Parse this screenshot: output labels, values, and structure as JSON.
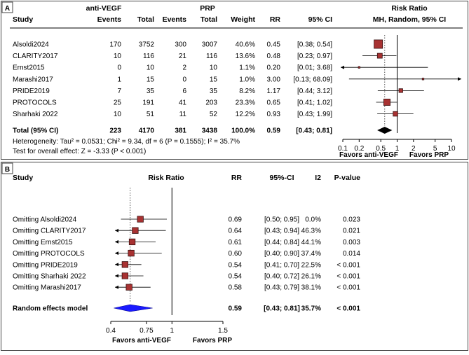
{
  "chart_data": [
    {
      "type": "forest",
      "panel_label": "A",
      "columns": {
        "study": "Study",
        "group1": "anti-VEGF",
        "group2": "PRP",
        "events": "Events",
        "total": "Total",
        "weight": "Weight",
        "rr": "RR",
        "ci": "95% CI",
        "plot_title": "Risk Ratio",
        "plot_subtitle": "MH, Random, 95% CI"
      },
      "studies": [
        {
          "name": "Alsoldi2024",
          "e1": "170",
          "t1": "3752",
          "e2": "300",
          "t2": "3007",
          "weight": "40.6%",
          "rr_text": "0.45",
          "ci_text": "[0.38; 0.54]",
          "rr": 0.45,
          "lo": 0.38,
          "hi": 0.54,
          "w": 40.6
        },
        {
          "name": "CLARITY2017",
          "e1": "10",
          "t1": "116",
          "e2": "21",
          "t2": "116",
          "weight": "13.6%",
          "rr_text": "0.48",
          "ci_text": "[0.23; 0.97]",
          "rr": 0.48,
          "lo": 0.23,
          "hi": 0.97,
          "w": 13.6
        },
        {
          "name": "Ernst2015",
          "e1": "0",
          "t1": "10",
          "e2": "2",
          "t2": "10",
          "weight": "1.1%",
          "rr_text": "0.20",
          "ci_text": "[0.01; 3.68]",
          "rr": 0.2,
          "lo": 0.01,
          "hi": 3.68,
          "w": 1.1
        },
        {
          "name": "Marashi2017",
          "e1": "1",
          "t1": "15",
          "e2": "0",
          "t2": "15",
          "weight": "1.0%",
          "rr_text": "3.00",
          "ci_text": "[0.13; 68.09]",
          "rr": 3.0,
          "lo": 0.13,
          "hi": 68.09,
          "w": 1.0
        },
        {
          "name": "PRIDE2019",
          "e1": "7",
          "t1": "35",
          "e2": "6",
          "t2": "35",
          "weight": "8.2%",
          "rr_text": "1.17",
          "ci_text": "[0.44; 3.12]",
          "rr": 1.17,
          "lo": 0.44,
          "hi": 3.12,
          "w": 8.2
        },
        {
          "name": "PROTOCOLS",
          "e1": "25",
          "t1": "191",
          "e2": "41",
          "t2": "203",
          "weight": "23.3%",
          "rr_text": "0.65",
          "ci_text": "[0.41; 1.02]",
          "rr": 0.65,
          "lo": 0.41,
          "hi": 1.02,
          "w": 23.3
        },
        {
          "name": "Sharhaki 2022",
          "e1": "10",
          "t1": "51",
          "e2": "11",
          "t2": "52",
          "weight": "12.2%",
          "rr_text": "0.93",
          "ci_text": "[0.43; 1.99]",
          "rr": 0.93,
          "lo": 0.43,
          "hi": 1.99,
          "w": 12.2
        }
      ],
      "total": {
        "name": "Total (95% CI)",
        "e1": "223",
        "t1": "4170",
        "e2": "381",
        "t2": "3438",
        "weight": "100.0%",
        "rr_text": "0.59",
        "ci_text": "[0.43; 0.81]",
        "rr": 0.59,
        "lo": 0.43,
        "hi": 0.81
      },
      "heterogeneity": "Heterogeneity: Tau² = 0.0531; Chi² = 9.34, df = 6 (P = 0.1555); I² = 35.7%",
      "overall_effect": "Test for overall effect: Z = -3.33 (P < 0.001)",
      "x_scale": "log",
      "xlim": [
        0.1,
        10
      ],
      "ticks": [
        0.1,
        0.2,
        0.5,
        1,
        2,
        5,
        10
      ],
      "tick_labels": [
        "0.1",
        "0.2",
        "0.5",
        "1",
        "2",
        "5",
        "10"
      ],
      "favors_left": "Favors anti-VEGF",
      "favors_right": "Favors PRP"
    },
    {
      "type": "forest",
      "panel_label": "B",
      "columns": {
        "study": "Study",
        "plot_title": "Risk Ratio",
        "rr": "RR",
        "ci": "95%-CI",
        "i2": "I2",
        "p": "P-value"
      },
      "studies": [
        {
          "name": "Omitting Alsoldi2024",
          "rr_text": "0.69",
          "ci_text": "[0.50; 0.95]",
          "i2": "0.0%",
          "p": "0.023",
          "rr": 0.69,
          "lo": 0.5,
          "hi": 0.95
        },
        {
          "name": "Omitting CLARITY2017",
          "rr_text": "0.64",
          "ci_text": "[0.43; 0.94]",
          "i2": "46.3%",
          "p": "0.021",
          "rr": 0.64,
          "lo": 0.43,
          "hi": 0.94
        },
        {
          "name": "Omitting Ernst2015",
          "rr_text": "0.61",
          "ci_text": "[0.44; 0.84]",
          "i2": "44.1%",
          "p": "0.003",
          "rr": 0.61,
          "lo": 0.44,
          "hi": 0.84
        },
        {
          "name": "Omitting PROTOCOLS",
          "rr_text": "0.60",
          "ci_text": "[0.40; 0.90]",
          "i2": "37.4%",
          "p": "0.014",
          "rr": 0.6,
          "lo": 0.4,
          "hi": 0.9
        },
        {
          "name": "Omitting PRIDE2019",
          "rr_text": "0.54",
          "ci_text": "[0.41; 0.70]",
          "i2": "22.5%",
          "p": "< 0.001",
          "rr": 0.54,
          "lo": 0.41,
          "hi": 0.7
        },
        {
          "name": "Omitting Sharhaki 2022",
          "rr_text": "0.54",
          "ci_text": "[0.40; 0.72]",
          "i2": "26.1%",
          "p": "< 0.001",
          "rr": 0.54,
          "lo": 0.4,
          "hi": 0.72
        },
        {
          "name": "Omitting Marashi2017",
          "rr_text": "0.58",
          "ci_text": "[0.43; 0.79]",
          "i2": "38.1%",
          "p": "< 0.001",
          "rr": 0.58,
          "lo": 0.43,
          "hi": 0.79
        }
      ],
      "total": {
        "name": "Random effects model",
        "rr_text": "0.59",
        "ci_text": "[0.43; 0.81]",
        "i2": "35.7%",
        "p": "< 0.001",
        "rr": 0.59,
        "lo": 0.43,
        "hi": 0.81
      },
      "x_scale": "linear",
      "xlim": [
        0.4,
        1.5
      ],
      "ticks": [
        0.4,
        0.75,
        1,
        1.5
      ],
      "tick_labels": [
        "0.4",
        "0.75",
        "1",
        "1.5"
      ],
      "favors_left": "Favors anti-VEGF",
      "favors_right": "Favors PRP"
    }
  ],
  "colors": {
    "square": "#a83232",
    "square_edge": "#3a1212",
    "diamond_a": "#000000",
    "diamond_b": "#1a1aff",
    "diamond_b_edge": "#00008a",
    "line": "#000000",
    "dotted": "#555555",
    "border": "#444444"
  }
}
